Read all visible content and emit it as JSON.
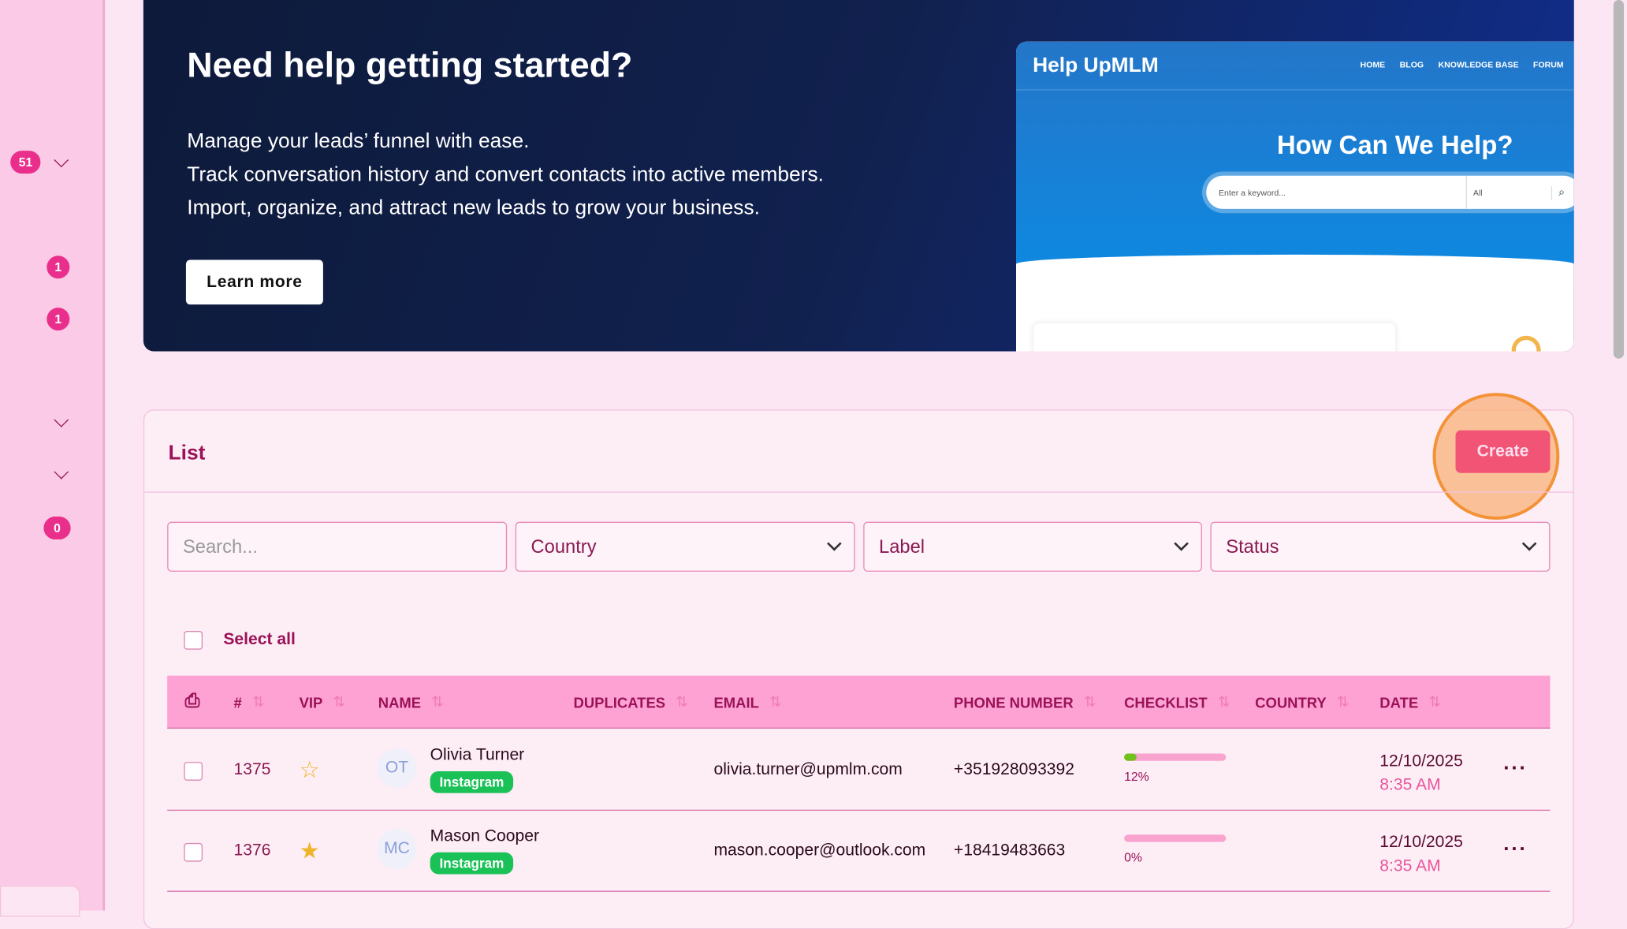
{
  "sidebar": {
    "badges": [
      "51",
      "1",
      "1",
      "0"
    ]
  },
  "hero": {
    "title": "Need help getting started?",
    "lines": [
      "Manage your leads’ funnel with ease.",
      "Track conversation history and convert contacts into active members.",
      "Import, organize, and attract new leads to grow your business."
    ],
    "button": "Learn more",
    "preview": {
      "brand": "Help UpMLM",
      "nav": [
        "HOME",
        "BLOG",
        "KNOWLEDGE BASE",
        "FORUM"
      ],
      "heading": "How Can We Help?",
      "placeholder": "Enter a keyword...",
      "select": "All"
    }
  },
  "list": {
    "title": "List",
    "create": "Create",
    "filters": {
      "search_placeholder": "Search...",
      "country": "Country",
      "label": "Label",
      "status": "Status"
    },
    "select_all": "Select all",
    "columns": [
      "#",
      "VIP",
      "NAME",
      "DUPLICATES",
      "EMAIL",
      "PHONE NUMBER",
      "CHECKLIST",
      "COUNTRY",
      "DATE"
    ],
    "rows": [
      {
        "id": "1375",
        "vip": false,
        "initials": "OT",
        "name": "Olivia Turner",
        "tag": "Instagram",
        "email": "olivia.turner@upmlm.com",
        "phone": "+351928093392",
        "checklist": 12,
        "checklist_label": "12%",
        "date": "12/10/2025",
        "time": "8:35 AM"
      },
      {
        "id": "1376",
        "vip": true,
        "initials": "MC",
        "name": "Mason Cooper",
        "tag": "Instagram",
        "email": "mason.cooper@outlook.com",
        "phone": "+18419483663",
        "checklist": 0,
        "checklist_label": "0%",
        "date": "12/10/2025",
        "time": "8:35 AM"
      }
    ]
  },
  "colors": {
    "accent": "#ea2e8c",
    "create": "#f15474",
    "tag": "#1ac157",
    "header": "#fda2d3"
  }
}
